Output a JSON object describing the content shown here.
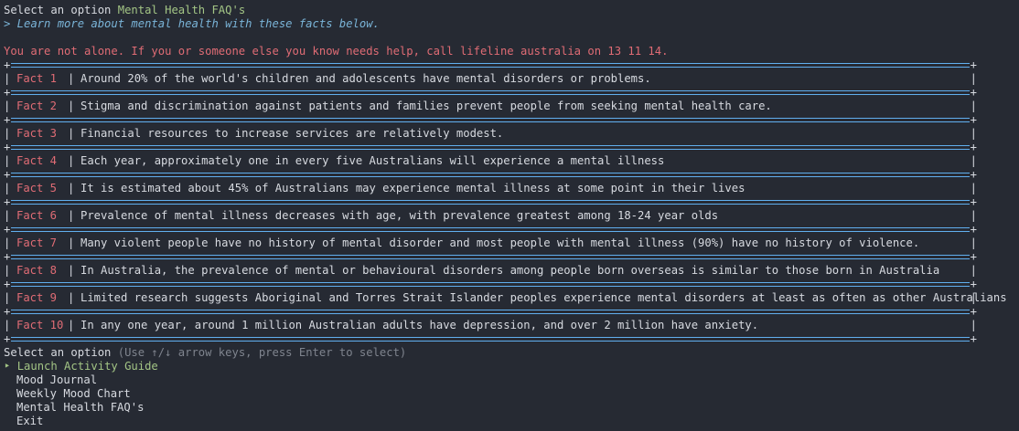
{
  "header": {
    "prompt_label": "Select an option",
    "selected_option": "Mental Health FAQ's",
    "subtitle": "> Learn more about mental health with these facts below."
  },
  "helpline": "You are not alone. If you or someone else you know needs help, call lifeline australia on 13 11 14.",
  "facts": [
    {
      "label": "Fact 1",
      "text": "Around 20% of the world's children and adolescents have mental disorders or problems."
    },
    {
      "label": "Fact 2",
      "text": "Stigma and discrimination against patients and families prevent people from seeking mental health care."
    },
    {
      "label": "Fact 3",
      "text": "Financial resources to increase services are relatively modest."
    },
    {
      "label": "Fact 4",
      "text": "Each year, approximately one in every five Australians will experience a mental illness"
    },
    {
      "label": "Fact 5",
      "text": "It is estimated about 45% of Australians may experience mental illness at some point in their lives"
    },
    {
      "label": "Fact 6",
      "text": "Prevalence of mental illness decreases with age, with prevalence greatest among 18-24 year olds"
    },
    {
      "label": "Fact 7",
      "text": "Many violent people have no history of mental disorder and most people with mental illness (90%) have no history of violence."
    },
    {
      "label": "Fact 8",
      "text": "In Australia, the prevalence of mental or behavioural disorders among people born overseas is similar to those born in Australia"
    },
    {
      "label": "Fact 9",
      "text": "Limited research suggests Aboriginal and Torres Strait Islander peoples experience mental disorders at least as often as other Australians"
    },
    {
      "label": "Fact 10",
      "text": "In any one year, around 1 million Australian adults have depression, and over 2 million have anxiety."
    }
  ],
  "menu": {
    "prompt_label": "Select an option",
    "hint": "(Use ↑/↓ arrow keys, press Enter to select)",
    "pointer": "‣",
    "items": [
      {
        "label": "Launch Activity Guide",
        "selected": true
      },
      {
        "label": "Mood Journal",
        "selected": false
      },
      {
        "label": "Weekly Mood Chart",
        "selected": false
      },
      {
        "label": "Mental Health FAQ's",
        "selected": false
      },
      {
        "label": "Exit",
        "selected": false
      }
    ]
  },
  "table_chars": {
    "corner": "+",
    "pipe": "|"
  },
  "colors": {
    "background": "#262a33",
    "accent_green": "#a3c585",
    "accent_red": "#e06c75",
    "accent_blue": "#7ab4d8",
    "border_blue": "#61afef"
  }
}
